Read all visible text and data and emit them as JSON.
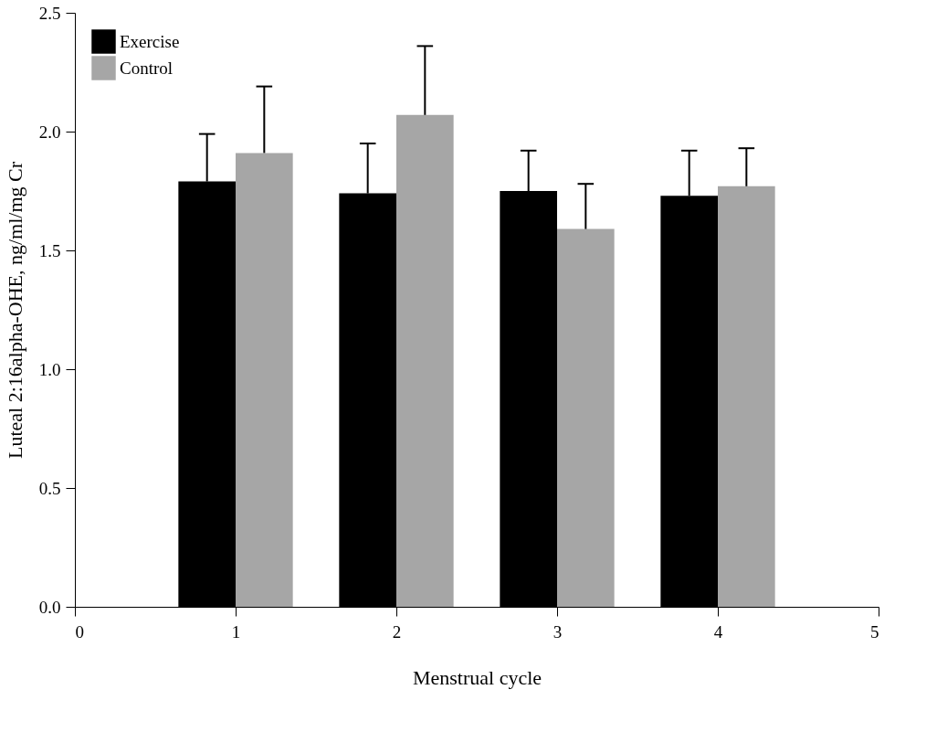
{
  "chart_data": {
    "type": "bar",
    "xlabel": "Menstrual cycle",
    "ylabel": "Luteal 2:16alpha-OHE, ng/ml/mg Cr",
    "x": [
      1,
      2,
      3,
      4
    ],
    "xlim": [
      0,
      5
    ],
    "xticks": [
      0,
      1,
      2,
      3,
      4,
      5
    ],
    "ylim": [
      0,
      2.5
    ],
    "yticks": [
      {
        "value": 0,
        "label": "0.0"
      },
      0.5,
      {
        "value": 1,
        "label": "1.0"
      },
      1.5,
      {
        "value": 2,
        "label": "2.0"
      },
      2.5
    ],
    "series": [
      {
        "name": "Exercise",
        "color": "#000000",
        "values": [
          1.79,
          1.74,
          1.75,
          1.73
        ],
        "errors": [
          [
            1.79,
            1.99
          ],
          [
            1.74,
            1.95
          ],
          [
            1.75,
            1.92
          ],
          [
            1.73,
            1.92
          ]
        ]
      },
      {
        "name": "Control",
        "color": "#a6a6a6",
        "values": [
          1.91,
          2.07,
          1.59,
          1.77
        ],
        "errors": [
          [
            1.91,
            2.19
          ],
          [
            2.07,
            2.36
          ],
          [
            1.59,
            1.78
          ],
          [
            1.77,
            1.93
          ]
        ]
      }
    ],
    "grid": false,
    "legend": "top left"
  }
}
